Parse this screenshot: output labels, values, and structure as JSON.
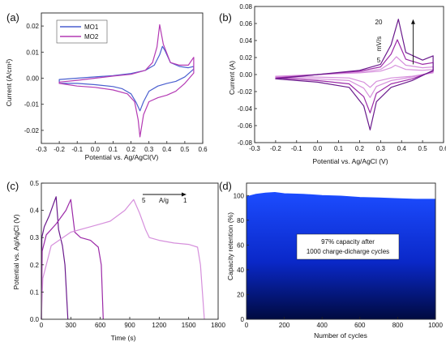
{
  "colors": {
    "mo1": "#4a5fcf",
    "mo2": "#b43ab4",
    "violet_dark": "#6a1a8c",
    "violet_mid": "#9c2aa8",
    "violet_light": "#d690dc",
    "fill_blue": "#0a28c8",
    "fill_top": "#1c4cff",
    "fill_bottom": "#000a40"
  },
  "chart_data": [
    {
      "panel_label": "(a)",
      "type": "line",
      "xlabel": "Potential vs. Ag/AgCl(V)",
      "ylabel": "Current (A/cm²)",
      "xlim": [
        -0.3,
        0.6
      ],
      "ylim": [
        -0.025,
        0.025
      ],
      "xticks": [
        -0.3,
        -0.2,
        -0.1,
        0.0,
        0.1,
        0.2,
        0.3,
        0.4,
        0.5,
        0.6
      ],
      "xtick_labels": [
        "-0.3",
        "-0.2",
        "-0.1",
        "0.0",
        "0.1",
        "0.2",
        "0.3",
        "0.4",
        "0.5",
        "0.6"
      ],
      "yticks": [
        -0.02,
        -0.01,
        0.0,
        0.01,
        0.02
      ],
      "ytick_labels": [
        "-0.02",
        "-0.01",
        "0.00",
        "0.01",
        "0.02"
      ],
      "legend": "top-left",
      "series": [
        {
          "name": "MO1",
          "color": "mo1",
          "x": [
            -0.2,
            -0.1,
            0.0,
            0.1,
            0.2,
            0.28,
            0.33,
            0.36,
            0.375,
            0.39,
            0.42,
            0.47,
            0.52,
            0.55,
            0.55,
            0.5,
            0.45,
            0.4,
            0.35,
            0.3,
            0.27,
            0.25,
            0.23,
            0.2,
            0.15,
            0.1,
            0.0,
            -0.1,
            -0.2
          ],
          "y": [
            -0.0005,
            0.0,
            0.0005,
            0.001,
            0.0018,
            0.003,
            0.005,
            0.009,
            0.0122,
            0.0105,
            0.006,
            0.0045,
            0.004,
            0.0045,
            0.0035,
            0.0005,
            -0.0012,
            -0.002,
            -0.003,
            -0.005,
            -0.009,
            -0.0125,
            -0.0095,
            -0.006,
            -0.004,
            -0.0032,
            -0.0025,
            -0.002,
            -0.002
          ]
        },
        {
          "name": "MO2",
          "color": "mo2",
          "x": [
            -0.2,
            -0.1,
            0.0,
            0.1,
            0.2,
            0.28,
            0.32,
            0.345,
            0.36,
            0.38,
            0.42,
            0.47,
            0.52,
            0.55,
            0.55,
            0.5,
            0.45,
            0.4,
            0.35,
            0.3,
            0.27,
            0.25,
            0.24,
            0.22,
            0.18,
            0.1,
            0.0,
            -0.1,
            -0.2
          ],
          "y": [
            -0.0015,
            -0.0008,
            0.0,
            0.0008,
            0.0015,
            0.003,
            0.006,
            0.012,
            0.0205,
            0.013,
            0.006,
            0.005,
            0.005,
            0.008,
            0.002,
            -0.002,
            -0.005,
            -0.0065,
            -0.0075,
            -0.009,
            -0.014,
            -0.0225,
            -0.016,
            -0.009,
            -0.006,
            -0.0045,
            -0.0035,
            -0.003,
            -0.002
          ]
        }
      ]
    },
    {
      "panel_label": "(b)",
      "type": "line",
      "xlabel": "Potential vs. Ag/AgCl (V)",
      "ylabel": "Current (A)",
      "xlim": [
        -0.3,
        0.6
      ],
      "ylim": [
        -0.08,
        0.08
      ],
      "xticks": [
        -0.3,
        -0.2,
        -0.1,
        0.0,
        0.1,
        0.2,
        0.3,
        0.4,
        0.5,
        0.6
      ],
      "xtick_labels": [
        "-0.3",
        "-0.2",
        "-0.1",
        "0.0",
        "0.1",
        "0.2",
        "0.3",
        "0.4",
        "0.5",
        "0.6"
      ],
      "yticks": [
        -0.08,
        -0.06,
        -0.04,
        -0.02,
        0.0,
        0.02,
        0.04,
        0.06,
        0.08
      ],
      "ytick_labels": [
        "-0.08",
        "-0.06",
        "-0.04",
        "-0.02",
        "0.00",
        "0.02",
        "0.04",
        "0.06",
        "0.08"
      ],
      "annotation": {
        "top": "20",
        "unit": "mV/s",
        "bottom": "5",
        "arrow_x": 0.455,
        "arrow_y": [
          0.012,
          0.065
        ]
      },
      "series": [
        {
          "color": "violet_light",
          "x": [
            -0.2,
            0.0,
            0.2,
            0.3,
            0.35,
            0.37,
            0.42,
            0.5,
            0.55,
            0.55,
            0.45,
            0.35,
            0.28,
            0.25,
            0.22,
            0.15,
            0.0,
            -0.2
          ],
          "y": [
            -0.002,
            0.0,
            0.002,
            0.004,
            0.008,
            0.011,
            0.006,
            0.005,
            0.006,
            0.002,
            -0.002,
            -0.004,
            -0.008,
            -0.015,
            -0.009,
            -0.004,
            -0.003,
            -0.002
          ]
        },
        {
          "color": "violet_light",
          "x": [
            -0.2,
            0.0,
            0.2,
            0.3,
            0.35,
            0.375,
            0.42,
            0.5,
            0.55,
            0.55,
            0.45,
            0.35,
            0.28,
            0.25,
            0.22,
            0.15,
            0.0,
            -0.2
          ],
          "y": [
            -0.003,
            0.0,
            0.003,
            0.006,
            0.014,
            0.021,
            0.011,
            0.008,
            0.009,
            0.003,
            -0.003,
            -0.007,
            -0.014,
            -0.027,
            -0.016,
            -0.007,
            -0.005,
            -0.003
          ]
        },
        {
          "color": "violet_mid",
          "x": [
            -0.2,
            0.0,
            0.2,
            0.3,
            0.35,
            0.38,
            0.42,
            0.5,
            0.55,
            0.55,
            0.45,
            0.35,
            0.28,
            0.25,
            0.22,
            0.15,
            0.0,
            -0.2
          ],
          "y": [
            -0.004,
            0.0,
            0.004,
            0.009,
            0.024,
            0.041,
            0.018,
            0.012,
            0.014,
            0.004,
            -0.005,
            -0.011,
            -0.022,
            -0.045,
            -0.026,
            -0.011,
            -0.007,
            -0.004
          ]
        },
        {
          "color": "violet_dark",
          "x": [
            -0.2,
            0.0,
            0.2,
            0.3,
            0.35,
            0.385,
            0.42,
            0.5,
            0.55,
            0.55,
            0.45,
            0.35,
            0.28,
            0.25,
            0.22,
            0.15,
            0.0,
            -0.2
          ],
          "y": [
            -0.005,
            0.0,
            0.005,
            0.012,
            0.035,
            0.065,
            0.026,
            0.017,
            0.022,
            0.005,
            -0.007,
            -0.015,
            -0.032,
            -0.065,
            -0.037,
            -0.015,
            -0.009,
            -0.005
          ]
        }
      ]
    },
    {
      "panel_label": "(c)",
      "type": "line",
      "xlabel": "Time (s)",
      "ylabel": "Potential vs. Ag/AgCl (V)",
      "xlim": [
        0,
        1800
      ],
      "ylim": [
        0.0,
        0.5
      ],
      "xticks": [
        0,
        300,
        600,
        900,
        1200,
        1500,
        1800
      ],
      "xtick_labels": [
        "0",
        "300",
        "600",
        "900",
        "1200",
        "1500",
        "1800"
      ],
      "yticks": [
        0.0,
        0.1,
        0.2,
        0.3,
        0.4,
        0.5
      ],
      "ytick_labels": [
        "0.0",
        "0.1",
        "0.2",
        "0.3",
        "0.4",
        "0.5"
      ],
      "annotation": {
        "left": "5",
        "unit": "A/g",
        "right": "1"
      },
      "series": [
        {
          "color": "violet_dark",
          "x": [
            0,
            5,
            30,
            80,
            130,
            150,
            175,
            195,
            215,
            240,
            255,
            270
          ],
          "y": [
            0.0,
            0.3,
            0.34,
            0.38,
            0.43,
            0.45,
            0.33,
            0.3,
            0.27,
            0.2,
            0.1,
            0.0
          ]
        },
        {
          "color": "violet_mid",
          "x": [
            0,
            8,
            50,
            150,
            250,
            300,
            340,
            400,
            500,
            580,
            610,
            630
          ],
          "y": [
            0.0,
            0.25,
            0.31,
            0.35,
            0.4,
            0.44,
            0.32,
            0.3,
            0.29,
            0.265,
            0.2,
            0.0
          ]
        },
        {
          "color": "violet_light",
          "x": [
            0,
            15,
            100,
            300,
            500,
            700,
            850,
            940,
            1000,
            1060,
            1100,
            1200,
            1350,
            1500,
            1590,
            1620,
            1640,
            1660
          ],
          "y": [
            0.0,
            0.15,
            0.27,
            0.32,
            0.34,
            0.36,
            0.4,
            0.44,
            0.39,
            0.33,
            0.3,
            0.29,
            0.28,
            0.275,
            0.265,
            0.2,
            0.1,
            0.0
          ]
        }
      ]
    },
    {
      "panel_label": "(d)",
      "type": "area",
      "xlabel": "Number of cycles",
      "ylabel": "Capacity retention (%)",
      "xlim": [
        0,
        1000
      ],
      "ylim": [
        0,
        110
      ],
      "xticks": [
        0,
        200,
        400,
        600,
        800,
        1000
      ],
      "xtick_labels": [
        "0",
        "200",
        "400",
        "600",
        "800",
        "1000"
      ],
      "yticks": [
        0,
        20,
        40,
        60,
        80,
        100
      ],
      "ytick_labels": [
        "0",
        "20",
        "40",
        "60",
        "80",
        "100"
      ],
      "annotation_lines": [
        "97% capacity after",
        "1000 charge-dicharge cycles"
      ],
      "series": [
        {
          "color": "fill_blue",
          "x": [
            0,
            50,
            100,
            150,
            200,
            300,
            400,
            500,
            600,
            700,
            800,
            900,
            1000
          ],
          "y": [
            99,
            101,
            102,
            102.5,
            101.5,
            101,
            100,
            99.5,
            98.5,
            98,
            97.5,
            97,
            97
          ]
        }
      ]
    }
  ]
}
